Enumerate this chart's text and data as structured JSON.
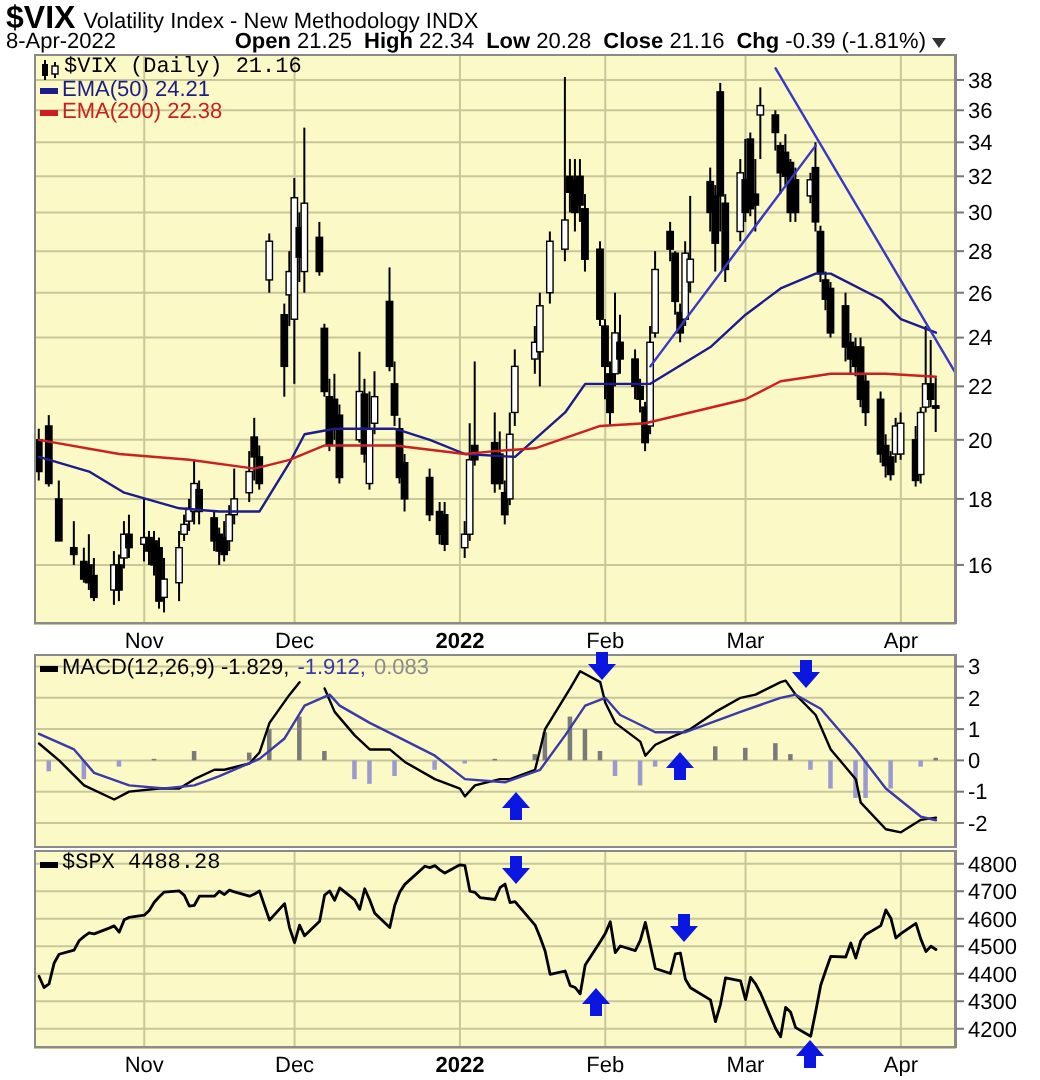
{
  "chart_data": [
    {
      "type": "candlestick",
      "title": "$VIX",
      "subtitle": "Volatility Index - New Methodology INDX",
      "annotations": [
        "8-Apr-2022",
        "Open 21.25",
        "High 22.34",
        "Low 20.28",
        "Close 21.16",
        "Chg -0.39 (-1.81%)"
      ],
      "series": [
        {
          "type": "candlestick",
          "name": "$VIX (Daily) 21.16",
          "color": "#000000",
          "x": [
            "2021-10-11",
            "2021-10-13",
            "2021-10-15",
            "2021-10-18",
            "2021-10-20",
            "2021-10-21",
            "2021-10-22",
            "2021-10-26",
            "2021-10-27",
            "2021-10-28",
            "2021-10-29",
            "2021-11-01",
            "2021-11-02",
            "2021-11-03",
            "2021-11-04",
            "2021-11-05",
            "2021-11-08",
            "2021-11-09",
            "2021-11-10",
            "2021-11-11",
            "2021-11-12",
            "2021-11-15",
            "2021-11-16",
            "2021-11-17",
            "2021-11-18",
            "2021-11-19",
            "2021-11-22",
            "2021-11-23",
            "2021-11-24",
            "2021-11-26",
            "2021-11-29",
            "2021-11-30",
            "2021-12-01",
            "2021-12-02",
            "2021-12-03",
            "2021-12-06",
            "2021-12-07",
            "2021-12-08",
            "2021-12-09",
            "2021-12-10",
            "2021-12-14",
            "2021-12-15",
            "2021-12-16",
            "2021-12-17",
            "2021-12-20",
            "2021-12-21",
            "2021-12-22",
            "2021-12-23",
            "2021-12-28",
            "2021-12-30",
            "2021-12-31",
            "2022-01-04",
            "2022-01-05",
            "2022-01-06",
            "2022-01-10",
            "2022-01-11",
            "2022-01-12",
            "2022-01-13",
            "2022-01-14",
            "2022-01-18",
            "2022-01-19",
            "2022-01-21",
            "2022-01-24",
            "2022-01-25",
            "2022-01-26",
            "2022-01-27",
            "2022-01-28",
            "2022-01-31",
            "2022-02-01",
            "2022-02-02",
            "2022-02-03",
            "2022-02-04",
            "2022-02-07",
            "2022-02-08",
            "2022-02-09",
            "2022-02-10",
            "2022-02-11",
            "2022-02-14",
            "2022-02-15",
            "2022-02-16",
            "2022-02-17",
            "2022-02-18",
            "2022-02-22",
            "2022-02-23",
            "2022-02-24",
            "2022-02-25",
            "2022-02-28",
            "2022-03-01",
            "2022-03-02",
            "2022-03-03",
            "2022-03-04",
            "2022-03-07",
            "2022-03-08",
            "2022-03-09",
            "2022-03-10",
            "2022-03-11",
            "2022-03-14",
            "2022-03-15",
            "2022-03-16",
            "2022-03-17",
            "2022-03-18",
            "2022-03-21",
            "2022-03-22",
            "2022-03-23",
            "2022-03-24",
            "2022-03-25",
            "2022-03-28",
            "2022-03-29",
            "2022-03-30",
            "2022-03-31",
            "2022-04-01",
            "2022-04-04",
            "2022-04-05",
            "2022-04-06",
            "2022-04-07",
            "2022-04-08"
          ],
          "ohlc": [
            [
              20.0,
              20.4,
              18.6,
              18.9
            ],
            [
              20.5,
              20.9,
              18.4,
              18.5
            ],
            [
              18.0,
              18.6,
              16.7,
              16.7
            ],
            [
              16.5,
              17.3,
              16.0,
              16.3
            ],
            [
              16.1,
              16.5,
              15.5,
              15.6
            ],
            [
              16.0,
              16.9,
              15.3,
              15.5
            ],
            [
              15.7,
              16.2,
              15.0,
              15.1
            ],
            [
              15.3,
              16.4,
              14.9,
              16.0
            ],
            [
              16.0,
              16.3,
              15.0,
              15.3
            ],
            [
              16.2,
              17.3,
              15.9,
              16.9
            ],
            [
              16.9,
              17.5,
              16.2,
              16.5
            ],
            [
              16.6,
              18.0,
              16.1,
              16.8
            ],
            [
              16.8,
              17.0,
              16.0,
              16.4
            ],
            [
              16.7,
              17.0,
              15.7,
              16.0
            ],
            [
              16.5,
              16.8,
              14.8,
              15.0
            ],
            [
              15.1,
              16.2,
              14.7,
              15.6
            ],
            [
              15.5,
              17.0,
              15.0,
              16.5
            ],
            [
              16.9,
              17.5,
              16.7,
              17.2
            ],
            [
              17.3,
              18.0,
              17.0,
              17.7
            ],
            [
              17.6,
              19.3,
              17.2,
              18.5
            ],
            [
              18.3,
              18.6,
              17.2,
              17.6
            ],
            [
              17.4,
              17.6,
              16.4,
              16.7
            ],
            [
              16.9,
              17.1,
              16.0,
              16.4
            ],
            [
              16.8,
              17.3,
              16.1,
              16.3
            ],
            [
              16.7,
              17.8,
              16.4,
              17.5
            ],
            [
              17.5,
              19.0,
              17.2,
              18.0
            ],
            [
              18.2,
              19.6,
              17.9,
              18.9
            ],
            [
              20.1,
              20.8,
              18.6,
              19.4
            ],
            [
              19.4,
              19.8,
              18.3,
              18.5
            ],
            [
              26.6,
              28.9,
              26.0,
              28.5
            ],
            [
              25.0,
              25.5,
              21.6,
              22.8
            ],
            [
              25.9,
              28.0,
              24.5,
              27.0
            ],
            [
              24.8,
              31.9,
              22.1,
              30.8
            ],
            [
              29.2,
              30.0,
              26.5,
              27.7
            ],
            [
              27.0,
              34.9,
              26.0,
              30.5
            ],
            [
              28.7,
              29.5,
              26.8,
              27.0
            ],
            [
              24.4,
              24.6,
              21.6,
              21.8
            ],
            [
              21.6,
              22.3,
              19.6,
              19.8
            ],
            [
              21.5,
              22.5,
              20.0,
              20.4
            ],
            [
              20.9,
              21.3,
              18.5,
              18.7
            ],
            [
              20.0,
              23.4,
              19.9,
              21.8
            ],
            [
              21.7,
              22.3,
              19.2,
              19.5
            ],
            [
              18.5,
              21.8,
              18.3,
              20.4
            ],
            [
              20.6,
              22.6,
              20.2,
              21.6
            ],
            [
              25.6,
              27.2,
              22.6,
              22.8
            ],
            [
              22.1,
              23.0,
              20.5,
              20.9
            ],
            [
              20.4,
              20.8,
              18.5,
              18.7
            ],
            [
              19.2,
              19.5,
              17.6,
              18.0
            ],
            [
              18.7,
              19.0,
              17.3,
              17.5
            ],
            [
              17.6,
              17.9,
              16.6,
              16.9
            ],
            [
              17.5,
              17.9,
              16.4,
              16.6
            ],
            [
              16.5,
              17.3,
              16.2,
              16.9
            ],
            [
              16.9,
              20.6,
              16.7,
              19.3
            ],
            [
              19.8,
              23.0,
              19.1,
              19.3
            ],
            [
              19.9,
              21.0,
              18.2,
              18.5
            ],
            [
              19.5,
              20.3,
              18.3,
              18.5
            ],
            [
              18.2,
              18.6,
              17.2,
              17.5
            ],
            [
              18.0,
              21.0,
              17.8,
              20.2
            ],
            [
              21.0,
              23.5,
              20.5,
              22.8
            ],
            [
              23.1,
              24.5,
              22.5,
              23.8
            ],
            [
              23.4,
              26.0,
              22.0,
              25.4
            ],
            [
              26.0,
              29.0,
              25.5,
              28.5
            ],
            [
              28.1,
              38.2,
              27.5,
              29.6
            ],
            [
              32.0,
              33.0,
              30.0,
              31.1
            ],
            [
              31.8,
              33.0,
              29.0,
              30.0
            ],
            [
              32.0,
              33.0,
              29.5,
              30.4
            ],
            [
              30.2,
              31.0,
              27.0,
              27.6
            ],
            [
              28.1,
              28.5,
              24.5,
              24.8
            ],
            [
              24.5,
              24.8,
              21.5,
              22.8
            ],
            [
              22.5,
              23.0,
              20.5,
              21.0
            ],
            [
              22.5,
              26.0,
              22.0,
              24.2
            ],
            [
              23.8,
              25.0,
              22.5,
              23.1
            ],
            [
              23.1,
              23.5,
              21.5,
              22.0
            ],
            [
              22.0,
              22.3,
              21.0,
              21.5
            ],
            [
              21.2,
              21.4,
              19.6,
              19.9
            ],
            [
              20.5,
              24.5,
              20.2,
              23.8
            ],
            [
              24.2,
              28.0,
              24.0,
              27.1
            ],
            [
              29.0,
              29.5,
              27.5,
              28.1
            ],
            [
              27.9,
              28.0,
              25.0,
              25.6
            ],
            [
              25.1,
              25.5,
              23.8,
              24.2
            ],
            [
              24.8,
              28.5,
              24.5,
              27.9
            ],
            [
              26.5,
              30.9,
              26.0,
              27.6
            ],
            [
              31.7,
              32.5,
              29.0,
              30.0
            ],
            [
              30.9,
              31.5,
              27.0,
              28.4
            ],
            [
              37.2,
              37.8,
              29.0,
              30.9
            ],
            [
              30.5,
              31.0,
              26.5,
              27.1
            ],
            [
              29.0,
              33.0,
              28.5,
              32.2
            ],
            [
              31.8,
              34.2,
              29.5,
              30.0
            ],
            [
              34.2,
              34.6,
              29.8,
              30.2
            ],
            [
              31.0,
              33.0,
              29.0,
              30.4
            ],
            [
              35.7,
              37.5,
              33.0,
              36.3
            ],
            [
              35.7,
              36.0,
              33.5,
              34.6
            ],
            [
              33.8,
              34.0,
              31.0,
              32.2
            ],
            [
              33.4,
              34.5,
              31.5,
              32.0
            ],
            [
              32.8,
              33.0,
              29.5,
              30.0
            ],
            [
              31.8,
              32.5,
              29.5,
              30.0
            ],
            [
              30.9,
              32.2,
              30.5,
              31.8
            ],
            [
              32.5,
              34.0,
              29.0,
              29.5
            ],
            [
              29.0,
              29.3,
              26.5,
              26.9
            ],
            [
              26.6,
              27.0,
              25.2,
              25.7
            ],
            [
              26.2,
              26.5,
              24.0,
              24.2
            ],
            [
              25.4,
              26.0,
              23.0,
              23.6
            ],
            [
              23.8,
              24.2,
              22.5,
              23.1
            ],
            [
              23.6,
              24.0,
              22.4,
              22.8
            ],
            [
              23.6,
              24.0,
              21.2,
              21.5
            ],
            [
              22.2,
              22.5,
              20.5,
              21.0
            ],
            [
              21.5,
              21.8,
              19.2,
              19.5
            ],
            [
              19.8,
              20.2,
              18.7,
              19.1
            ],
            [
              19.4,
              19.6,
              18.6,
              18.8
            ],
            [
              19.5,
              20.8,
              19.2,
              20.5
            ],
            [
              19.5,
              21.0,
              19.3,
              20.6
            ],
            [
              20.0,
              20.5,
              18.4,
              18.6
            ],
            [
              18.8,
              21.2,
              18.5,
              21.0
            ],
            [
              21.2,
              24.5,
              21.0,
              22.1
            ],
            [
              22.1,
              23.9,
              21.2,
              21.5
            ],
            [
              21.25,
              22.34,
              20.28,
              21.16
            ]
          ]
        },
        {
          "type": "line",
          "name": "EMA(50) 24.21",
          "color": "#1c1c8a",
          "x": [
            "2021-10-11",
            "2021-10-21",
            "2021-10-28",
            "2021-11-08",
            "2021-11-16",
            "2021-11-24",
            "2021-11-30",
            "2021-12-03",
            "2021-12-09",
            "2021-12-21",
            "2021-12-28",
            "2022-01-04",
            "2022-01-14",
            "2022-01-24",
            "2022-01-28",
            "2022-02-03",
            "2022-02-10",
            "2022-02-22",
            "2022-03-01",
            "2022-03-08",
            "2022-03-15",
            "2022-03-18",
            "2022-03-28",
            "2022-04-01",
            "2022-04-08"
          ],
          "values": [
            19.4,
            18.9,
            18.2,
            17.7,
            17.6,
            17.6,
            19.2,
            20.2,
            20.4,
            20.4,
            20.0,
            19.5,
            19.4,
            21.0,
            22.1,
            22.1,
            22.1,
            23.6,
            25.0,
            26.2,
            26.9,
            26.9,
            25.7,
            24.8,
            24.21
          ]
        },
        {
          "type": "line",
          "name": "EMA(200) 22.38",
          "color": "#cc2020",
          "x": [
            "2021-10-11",
            "2021-10-27",
            "2021-11-10",
            "2021-11-23",
            "2021-11-30",
            "2021-12-07",
            "2021-12-21",
            "2022-01-04",
            "2022-01-10",
            "2022-01-18",
            "2022-01-31",
            "2022-02-09",
            "2022-03-01",
            "2022-03-08",
            "2022-03-18",
            "2022-03-29",
            "2022-04-08"
          ],
          "values": [
            20.0,
            19.5,
            19.3,
            19.0,
            19.3,
            19.8,
            19.8,
            19.5,
            19.6,
            19.7,
            20.5,
            20.6,
            21.5,
            22.2,
            22.5,
            22.5,
            22.38
          ]
        },
        {
          "type": "line",
          "color": "#3838c8",
          "x": [
            "2022-02-10",
            "2022-03-15"
          ],
          "values": [
            22.8,
            33.8
          ]
        },
        {
          "type": "line",
          "color": "#3838c8",
          "x": [
            "2022-03-07",
            "2022-04-12"
          ],
          "values": [
            38.8,
            22.5
          ]
        }
      ],
      "log": true,
      "ylim": [
        14.4,
        39.8
      ],
      "yticks": [
        16,
        18,
        20,
        22,
        24,
        26,
        28,
        30,
        32,
        34,
        36,
        38
      ],
      "xlim": [
        "2021-10-10",
        "2022-04-12"
      ],
      "xticks": [
        {
          "value": "2021-11-01",
          "label": "Nov"
        },
        {
          "value": "2021-12-01",
          "label": "Dec"
        },
        {
          "value": "2022-01-03",
          "label": "2022"
        },
        {
          "value": "2022-02-01",
          "label": "Feb"
        },
        {
          "value": "2022-03-01",
          "label": "Mar"
        },
        {
          "value": "2022-04-01",
          "label": "Apr"
        }
      ],
      "grid": true,
      "legend": "top left"
    },
    {
      "type": "line",
      "series": [
        {
          "name": "MACD(12,26,9) -1.829,",
          "color": "#000000",
          "x": [
            "2021-10-11",
            "2021-10-15",
            "2021-10-20",
            "2021-10-26",
            "2021-10-29",
            "2021-11-04",
            "2021-11-08",
            "2021-11-11",
            "2021-11-15",
            "2021-11-17",
            "2021-11-22",
            "2021-11-24",
            "2021-11-26",
            "2021-11-30",
            "2021-12-02",
            "2021-12-03",
            "2021-12-06",
            "2021-12-07",
            "2021-12-09",
            "2021-12-13",
            "2021-12-16",
            "2021-12-20",
            "2021-12-23",
            "2021-12-29",
            "2022-01-03",
            "2022-01-04",
            "2022-01-06",
            "2022-01-11",
            "2022-01-13",
            "2022-01-18",
            "2022-01-20",
            "2022-01-25",
            "2022-01-27",
            "2022-01-31",
            "2022-02-01",
            "2022-02-03",
            "2022-02-08",
            "2022-02-09",
            "2022-02-11",
            "2022-02-15",
            "2022-02-18",
            "2022-02-23",
            "2022-02-28",
            "2022-03-03",
            "2022-03-08",
            "2022-03-09",
            "2022-03-11",
            "2022-03-15",
            "2022-03-18",
            "2022-03-23",
            "2022-03-24",
            "2022-03-29",
            "2022-04-01",
            "2022-04-05",
            "2022-04-08"
          ],
          "values": [
            0.54,
            0.0,
            -0.8,
            -1.25,
            -1.0,
            -0.9,
            -0.9,
            -0.6,
            -0.3,
            -0.3,
            -0.1,
            0.25,
            1.2,
            2.1,
            2.5,
            null,
            null,
            2.3,
            1.55,
            0.8,
            0.35,
            0.35,
            -0.05,
            -0.6,
            -0.9,
            -1.15,
            -0.8,
            -0.6,
            -0.6,
            -0.3,
            1.0,
            2.3,
            2.85,
            2.5,
            1.85,
            1.2,
            0.6,
            0.15,
            0.5,
            0.8,
            1.0,
            1.55,
            2.0,
            2.1,
            2.5,
            2.55,
            2.1,
            1.45,
            0.35,
            -0.6,
            -1.35,
            -2.2,
            -2.3,
            -1.9,
            -1.829
          ]
        },
        {
          "name": "-1.912,",
          "color": "#3a3aa8",
          "x": [
            "2021-10-11",
            "2021-10-18",
            "2021-10-22",
            "2021-10-29",
            "2021-11-05",
            "2021-11-11",
            "2021-11-16",
            "2021-11-24",
            "2021-11-29",
            "2021-12-03",
            "2021-12-08",
            "2021-12-10",
            "2021-12-16",
            "2021-12-21",
            "2021-12-29",
            "2022-01-04",
            "2022-01-12",
            "2022-01-19",
            "2022-01-24",
            "2022-01-28",
            "2022-02-01",
            "2022-02-04",
            "2022-02-11",
            "2022-02-17",
            "2022-02-28",
            "2022-03-08",
            "2022-03-11",
            "2022-03-16",
            "2022-03-23",
            "2022-03-29",
            "2022-04-05",
            "2022-04-08"
          ],
          "values": [
            0.85,
            0.35,
            -0.4,
            -0.8,
            -0.9,
            -0.8,
            -0.5,
            0.05,
            0.7,
            1.75,
            2.1,
            1.75,
            1.2,
            0.8,
            0.15,
            -0.6,
            -0.7,
            -0.3,
            0.8,
            1.75,
            2.0,
            1.45,
            0.9,
            0.9,
            1.55,
            2.0,
            2.1,
            1.65,
            0.35,
            -0.9,
            -1.8,
            -1.912
          ]
        },
        {
          "type": "bar",
          "name": "0.083",
          "color": "#8c8c8c",
          "x": [
            "2021-10-13",
            "2021-10-20",
            "2021-10-27",
            "2021-11-03",
            "2021-11-11",
            "2021-11-22",
            "2021-11-26",
            "2021-12-02",
            "2021-12-07",
            "2021-12-13",
            "2021-12-16",
            "2021-12-21",
            "2021-12-29",
            "2022-01-04",
            "2022-01-10",
            "2022-01-18",
            "2022-01-20",
            "2022-01-25",
            "2022-01-28",
            "2022-01-31",
            "2022-02-03",
            "2022-02-08",
            "2022-02-11",
            "2022-02-16",
            "2022-02-23",
            "2022-03-01",
            "2022-03-07",
            "2022-03-10",
            "2022-03-14",
            "2022-03-18",
            "2022-03-23",
            "2022-03-25",
            "2022-03-30",
            "2022-04-05",
            "2022-04-08"
          ],
          "values": [
            -0.35,
            -0.6,
            -0.2,
            0.05,
            0.3,
            0.25,
            1.0,
            1.4,
            0.3,
            -0.6,
            -0.75,
            -0.5,
            -0.3,
            -0.1,
            0.05,
            0.2,
            0.9,
            1.4,
            1.0,
            0.3,
            -0.5,
            -0.8,
            -0.2,
            null,
            0.45,
            0.4,
            0.55,
            0.2,
            -0.3,
            -0.9,
            -1.2,
            -1.2,
            -0.9,
            -0.2,
            0.083
          ],
          "colors": [
            "#9a9ad0",
            "#9a9ad0",
            "#9a9ad0",
            "#7a7a7a",
            "#7a7a7a",
            "#7a7a7a",
            "#7a7a7a",
            "#7a7a7a",
            "#7a7a7a",
            "#9a9ad0",
            "#9a9ad0",
            "#9a9ad0",
            "#9a9ad0",
            "#9a9ad0",
            "#7a7a7a",
            "#7a7a7a",
            "#7a7a7a",
            "#7a7a7a",
            "#7a7a7a",
            "#7a7a7a",
            "#9a9ad0",
            "#9a9ad0",
            "#9a9ad0",
            "#7a7a7a",
            "#7a7a7a",
            "#7a7a7a",
            "#7a7a7a",
            "#7a7a7a",
            "#9a9ad0",
            "#9a9ad0",
            "#9a9ad0",
            "#9a9ad0",
            "#9a9ad0",
            "#9a9ad0",
            "#7a7a7a"
          ]
        }
      ],
      "ylim": [
        -2.8,
        3.4
      ],
      "yticks": [
        -2,
        -1,
        0,
        1,
        2,
        3
      ],
      "xlim": [
        "2021-10-10",
        "2022-04-12"
      ],
      "xticks": [
        {
          "value": "2021-11-01",
          "label": null
        },
        {
          "value": "2021-12-01",
          "label": null
        },
        {
          "value": "2022-01-03",
          "label": null
        },
        {
          "value": "2022-02-01",
          "label": null
        },
        {
          "value": "2022-03-01",
          "label": null
        },
        {
          "value": "2022-04-01",
          "label": null
        }
      ],
      "tick_labels": "y",
      "grid": true,
      "legend": "top left"
    },
    {
      "type": "line",
      "series": [
        {
          "name": "$SPX 4488.28",
          "color": "#000000",
          "x": [
            "2021-10-11",
            "2021-10-12",
            "2021-10-13",
            "2021-10-14",
            "2021-10-15",
            "2021-10-18",
            "2021-10-19",
            "2021-10-20",
            "2021-10-21",
            "2021-10-22",
            "2021-10-25",
            "2021-10-26",
            "2021-10-27",
            "2021-10-28",
            "2021-10-29",
            "2021-11-01",
            "2021-11-02",
            "2021-11-03",
            "2021-11-04",
            "2021-11-05",
            "2021-11-08",
            "2021-11-09",
            "2021-11-10",
            "2021-11-11",
            "2021-11-12",
            "2021-11-15",
            "2021-11-16",
            "2021-11-17",
            "2021-11-18",
            "2021-11-19",
            "2021-11-22",
            "2021-11-23",
            "2021-11-24",
            "2021-11-26",
            "2021-11-29",
            "2021-11-30",
            "2021-12-01",
            "2021-12-02",
            "2021-12-03",
            "2021-12-06",
            "2021-12-07",
            "2021-12-08",
            "2021-12-09",
            "2021-12-10",
            "2021-12-13",
            "2021-12-14",
            "2021-12-15",
            "2021-12-16",
            "2021-12-17",
            "2021-12-20",
            "2021-12-21",
            "2021-12-22",
            "2021-12-23",
            "2021-12-27",
            "2021-12-28",
            "2021-12-29",
            "2021-12-30",
            "2021-12-31",
            "2022-01-03",
            "2022-01-04",
            "2022-01-05",
            "2022-01-06",
            "2022-01-07",
            "2022-01-10",
            "2022-01-11",
            "2022-01-12",
            "2022-01-13",
            "2022-01-14",
            "2022-01-18",
            "2022-01-19",
            "2022-01-20",
            "2022-01-21",
            "2022-01-24",
            "2022-01-25",
            "2022-01-26",
            "2022-01-27",
            "2022-01-28",
            "2022-01-31",
            "2022-02-01",
            "2022-02-02",
            "2022-02-03",
            "2022-02-04",
            "2022-02-07",
            "2022-02-08",
            "2022-02-09",
            "2022-02-10",
            "2022-02-11",
            "2022-02-14",
            "2022-02-15",
            "2022-02-16",
            "2022-02-17",
            "2022-02-18",
            "2022-02-22",
            "2022-02-23",
            "2022-02-24",
            "2022-02-25",
            "2022-02-28",
            "2022-03-01",
            "2022-03-02",
            "2022-03-03",
            "2022-03-04",
            "2022-03-07",
            "2022-03-08",
            "2022-03-09",
            "2022-03-10",
            "2022-03-11",
            "2022-03-14",
            "2022-03-15",
            "2022-03-16",
            "2022-03-17",
            "2022-03-18",
            "2022-03-21",
            "2022-03-22",
            "2022-03-23",
            "2022-03-24",
            "2022-03-25",
            "2022-03-28",
            "2022-03-29",
            "2022-03-30",
            "2022-03-31",
            "2022-04-01",
            "2022-04-04",
            "2022-04-05",
            "2022-04-06",
            "2022-04-07",
            "2022-04-08"
          ],
          "values": [
            4391,
            4350,
            4363,
            4438,
            4471,
            4486,
            4520,
            4536,
            4549,
            4545,
            4566,
            4574,
            4551,
            4596,
            4605,
            4613,
            4630,
            4660,
            4680,
            4697,
            4701,
            4685,
            4646,
            4649,
            4682,
            4682,
            4700,
            4688,
            4704,
            4698,
            4682,
            4690,
            4701,
            4595,
            4655,
            4567,
            4513,
            4577,
            4538,
            4591,
            4686,
            4701,
            4667,
            4712,
            4669,
            4634,
            4709,
            4668,
            4620,
            4568,
            4649,
            4697,
            4725,
            4791,
            4786,
            4793,
            4778,
            4766,
            4796,
            4793,
            4700,
            4696,
            4677,
            4670,
            4713,
            4726,
            4659,
            4662,
            4577,
            4533,
            4483,
            4398,
            4410,
            4357,
            4350,
            4327,
            4432,
            4516,
            4546,
            4589,
            4477,
            4501,
            4484,
            4521,
            4587,
            4504,
            4419,
            4401,
            4472,
            4475,
            4380,
            4349,
            4305,
            4226,
            4289,
            4385,
            4374,
            4306,
            4387,
            4363,
            4329,
            4201,
            4171,
            4278,
            4260,
            4204,
            4173,
            4263,
            4358,
            4412,
            4463,
            4461,
            4512,
            4457,
            4520,
            4543,
            4575,
            4632,
            4602,
            4530,
            4546,
            4583,
            4525,
            4481,
            4500,
            4488.28
          ]
        }
      ],
      "ylim": [
        4130,
        4850
      ],
      "yticks": [
        4200,
        4300,
        4400,
        4500,
        4600,
        4700,
        4800
      ],
      "xlim": [
        "2021-10-10",
        "2022-04-12"
      ],
      "xticks": [
        {
          "value": "2021-11-01",
          "label": "Nov"
        },
        {
          "value": "2021-12-01",
          "label": "Dec"
        },
        {
          "value": "2022-01-03",
          "label": "2022"
        },
        {
          "value": "2022-02-01",
          "label": "Feb"
        },
        {
          "value": "2022-03-01",
          "label": "Mar"
        },
        {
          "value": "2022-04-01",
          "label": "Apr"
        }
      ],
      "grid": true,
      "legend": "top left"
    }
  ]
}
